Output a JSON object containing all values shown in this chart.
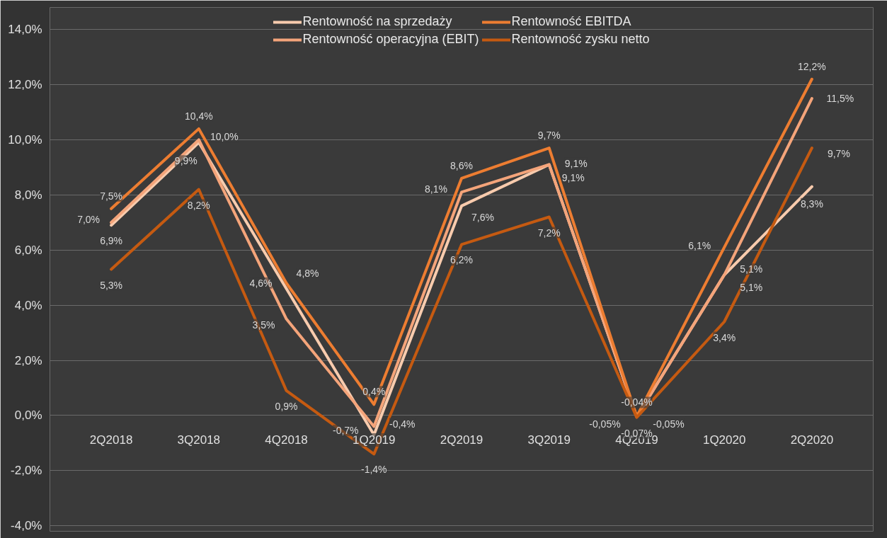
{
  "chart_data": {
    "type": "line",
    "categories": [
      "2Q2018",
      "3Q2018",
      "4Q2018",
      "1Q2019",
      "2Q2019",
      "3Q2019",
      "4Q2019",
      "1Q2020",
      "2Q2020"
    ],
    "ylim": [
      -4.2,
      14.8
    ],
    "yticks": [
      {
        "value": -4,
        "label": "-4,0%"
      },
      {
        "value": -2,
        "label": "-2,0%"
      },
      {
        "value": 0,
        "label": "0,0%"
      },
      {
        "value": 2,
        "label": "2,0%"
      },
      {
        "value": 4,
        "label": "4,0%"
      },
      {
        "value": 6,
        "label": "6,0%"
      },
      {
        "value": 8,
        "label": "8,0%"
      },
      {
        "value": 10,
        "label": "10,0%"
      },
      {
        "value": 12,
        "label": "12,0%"
      },
      {
        "value": 14,
        "label": "14,0%"
      }
    ],
    "grid": "y",
    "legend": "top",
    "line_style": "solid",
    "marker": "none",
    "series": [
      {
        "name": "Rentowność na sprzedaży",
        "color": "#f8cbad",
        "values": [
          6.9,
          9.9,
          4.6,
          -0.7,
          7.6,
          9.1,
          -0.05,
          5.1,
          8.3
        ],
        "value_labels": [
          "6,9%",
          "9,9%",
          "4,6%",
          "-0,7%",
          "7,6%",
          "9,1%",
          "-0,05%",
          "5,1%",
          "8,3%"
        ]
      },
      {
        "name": "Rentowność operacyjna (EBIT)",
        "color": "#f4a47a",
        "values": [
          7.0,
          10.0,
          3.5,
          -0.4,
          8.1,
          9.1,
          -0.05,
          5.1,
          11.5
        ],
        "value_labels": [
          "7,0%",
          "10,0%",
          "3,5%",
          "-0,4%",
          "8,1%",
          "9,1%",
          "-0,05%",
          "5,1%",
          "11,5%"
        ]
      },
      {
        "name": "Rentowność EBITDA",
        "color": "#ed7d31",
        "values": [
          7.5,
          10.4,
          4.8,
          0.4,
          8.6,
          9.7,
          -0.04,
          6.1,
          12.2
        ],
        "value_labels": [
          "7,5%",
          "10,4%",
          "4,8%",
          "0,4%",
          "8,6%",
          "9,7%",
          "-0,04%",
          "6,1%",
          "12,2%"
        ]
      },
      {
        "name": "Rentowność zysku netto",
        "color": "#c55a11",
        "values": [
          5.3,
          8.2,
          0.9,
          -1.4,
          6.2,
          7.2,
          -0.07,
          3.4,
          9.7
        ],
        "value_labels": [
          "5,3%",
          "8,2%",
          "0,9%",
          "-1,4%",
          "6,2%",
          "7,2%",
          "-0,07%",
          "3,4%",
          "9,7%"
        ]
      }
    ]
  }
}
